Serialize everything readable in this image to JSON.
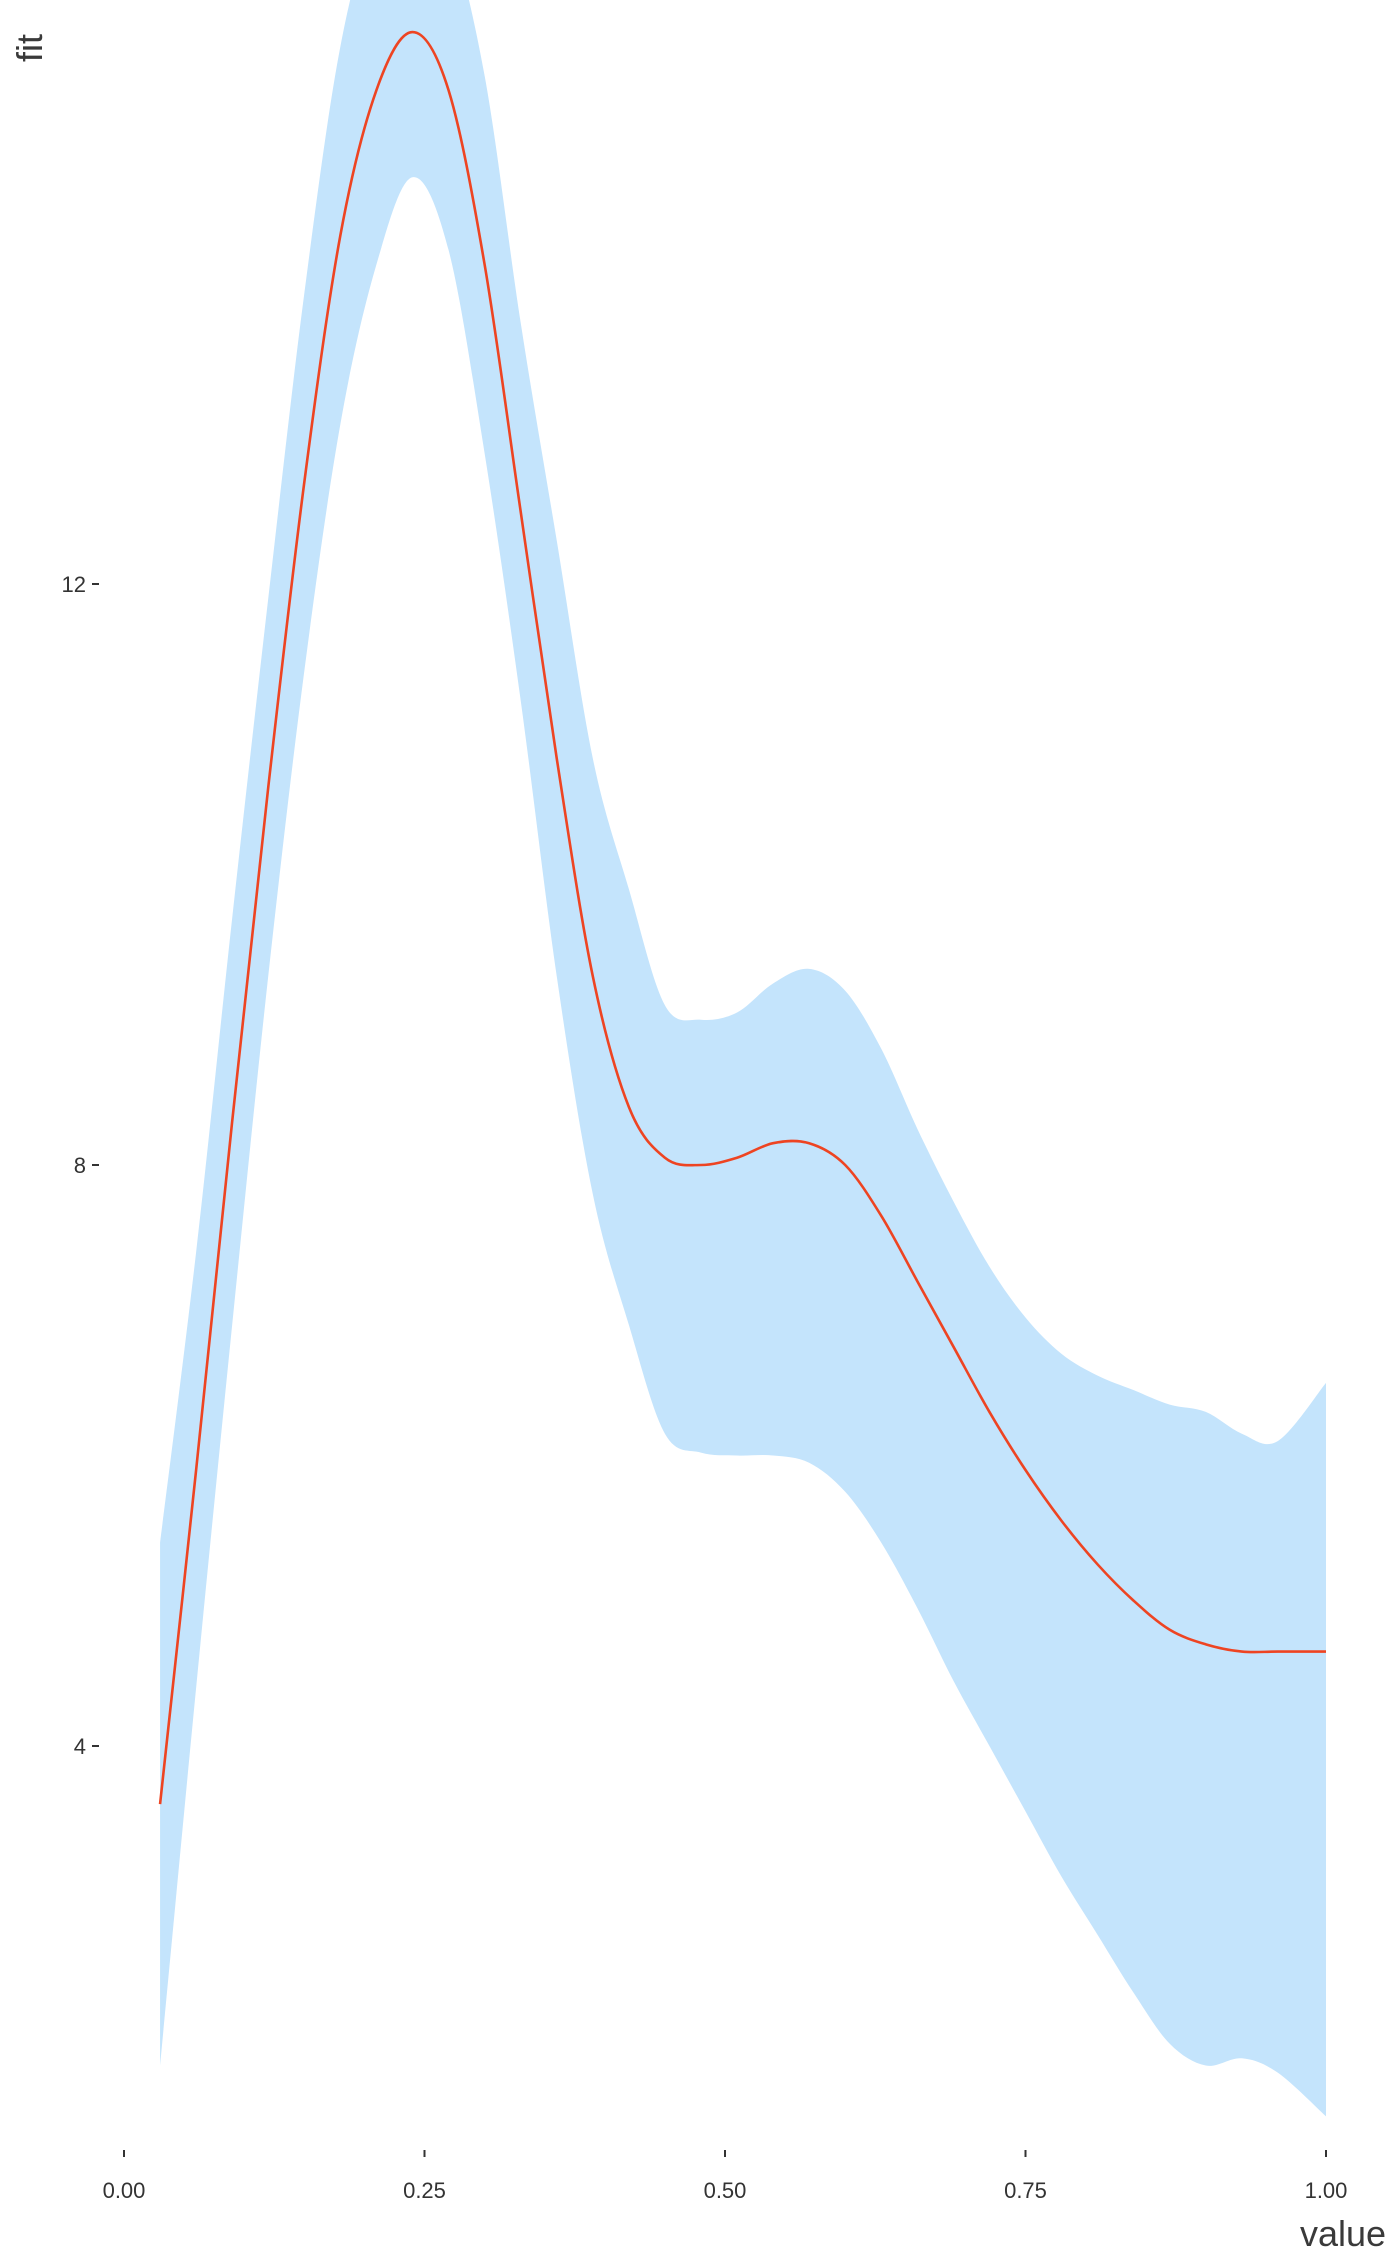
{
  "chart_data": {
    "type": "line",
    "title": "",
    "xlabel": "value",
    "ylabel": "fit",
    "xlim": [
      0,
      1
    ],
    "ylim": [
      2,
      16.3
    ],
    "x_ticks": [
      0,
      0.25,
      0.5,
      0.75,
      1
    ],
    "x_tick_labels": [
      "0.00",
      "0.25",
      "0.50",
      "0.75",
      "1.00"
    ],
    "y_ticks": [
      4,
      8,
      12
    ],
    "y_tick_labels": [
      "4",
      "8",
      "12"
    ],
    "grid": false,
    "colors": {
      "line": "#ee4422",
      "ribbon": "#c4e4fc"
    },
    "series": [
      {
        "x": [
          0.03,
          0.06,
          0.09,
          0.12,
          0.15,
          0.18,
          0.21,
          0.24,
          0.27,
          0.3,
          0.33,
          0.36,
          0.39,
          0.42,
          0.45,
          0.48,
          0.51,
          0.54,
          0.57,
          0.6,
          0.63,
          0.66,
          0.69,
          0.72,
          0.75,
          0.78,
          0.81,
          0.84,
          0.87,
          0.9,
          0.93,
          0.96,
          1.0
        ],
        "y": [
          3.6,
          5.9,
          8.3,
          10.6,
          12.7,
          14.4,
          15.4,
          15.8,
          15.4,
          14.2,
          12.5,
          10.8,
          9.3,
          8.4,
          8.05,
          8.0,
          8.05,
          8.15,
          8.15,
          8.0,
          7.65,
          7.2,
          6.75,
          6.3,
          5.9,
          5.55,
          5.25,
          5.0,
          4.8,
          4.7,
          4.65,
          4.65,
          4.65
        ],
        "lower": [
          1.8,
          4.4,
          6.9,
          9.3,
          11.4,
          13.1,
          14.2,
          14.8,
          14.3,
          12.9,
          11.2,
          9.3,
          7.8,
          6.9,
          6.15,
          6.02,
          6.0,
          6.0,
          5.95,
          5.75,
          5.4,
          4.95,
          4.45,
          4.0,
          3.55,
          3.1,
          2.7,
          2.3,
          1.95,
          1.8,
          1.85,
          1.75,
          1.45
        ],
        "upper": [
          5.4,
          7.4,
          9.7,
          11.9,
          14.0,
          15.7,
          16.6,
          16.8,
          16.5,
          15.5,
          13.8,
          12.3,
          10.8,
          9.9,
          9.1,
          9.0,
          9.05,
          9.25,
          9.35,
          9.2,
          8.8,
          8.25,
          7.75,
          7.3,
          6.95,
          6.7,
          6.55,
          6.45,
          6.35,
          6.3,
          6.15,
          6.1,
          6.5
        ]
      }
    ]
  }
}
